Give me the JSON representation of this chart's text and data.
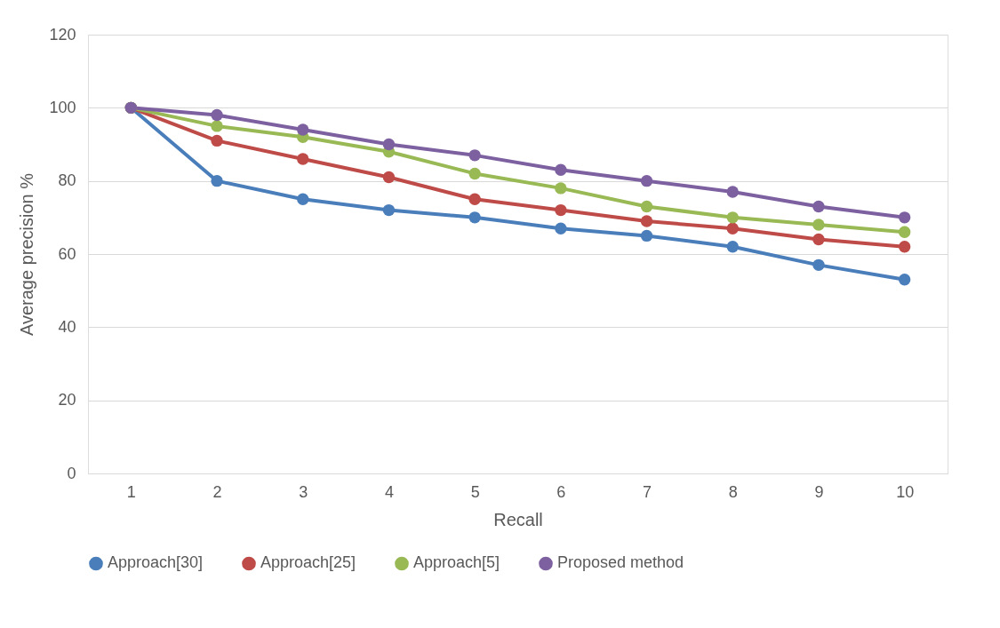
{
  "chart_data": {
    "type": "line",
    "xlabel": "Recall",
    "ylabel": "Average precision %",
    "categories": [
      "1",
      "2",
      "3",
      "4",
      "5",
      "6",
      "7",
      "8",
      "9",
      "10"
    ],
    "series": [
      {
        "name": "Approach[30]",
        "color": "#4a7ebb",
        "values": [
          100,
          80,
          75,
          72,
          70,
          67,
          65,
          62,
          57,
          53
        ]
      },
      {
        "name": "Approach[25]",
        "color": "#be4b48",
        "values": [
          100,
          91,
          86,
          81,
          75,
          72,
          69,
          67,
          64,
          62
        ]
      },
      {
        "name": "Approach[5]",
        "color": "#98b954",
        "values": [
          100,
          95,
          92,
          88,
          82,
          78,
          73,
          70,
          68,
          66
        ]
      },
      {
        "name": "Proposed method",
        "color": "#7d60a0",
        "values": [
          100,
          98,
          94,
          90,
          87,
          83,
          80,
          77,
          73,
          70
        ]
      }
    ],
    "ylim": [
      0,
      120
    ],
    "yticks": [
      0,
      20,
      40,
      60,
      80,
      100,
      120
    ],
    "grid": "y",
    "legend": "bottom",
    "marker": "circle",
    "line_style": "solid"
  }
}
